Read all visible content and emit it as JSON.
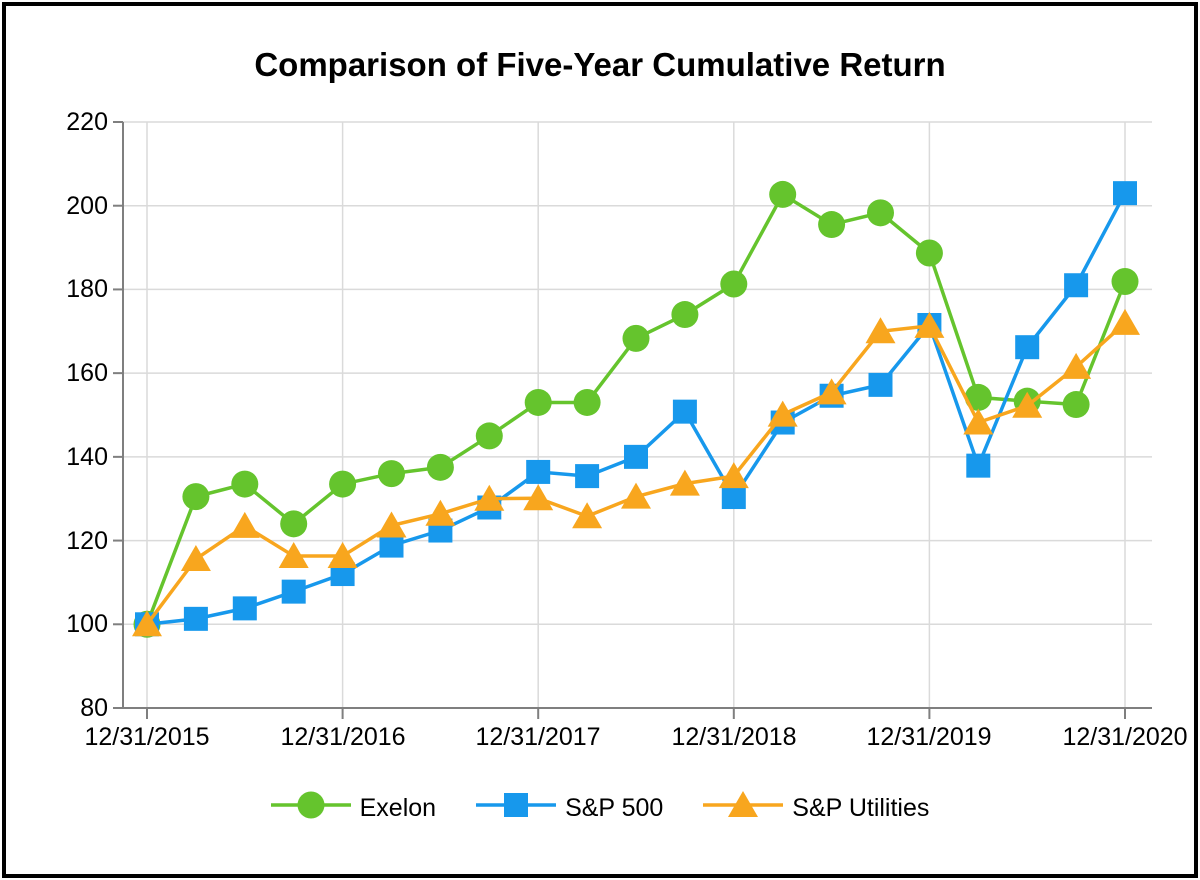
{
  "frame": {
    "border_color": "#000000",
    "background": "#ffffff"
  },
  "chart_data": {
    "type": "line",
    "title": "Comparison of Five-Year Cumulative Return",
    "grid": true,
    "grid_color": "#DADADA",
    "axis_color": "#7F7F7F",
    "legend_position": "bottom",
    "ylim": [
      80,
      220
    ],
    "y_ticks": [
      "220",
      "200",
      "180",
      "160",
      "140",
      "120",
      "100",
      "80"
    ],
    "x_tick_labels": [
      "12/31/2015",
      "12/31/2016",
      "12/31/2017",
      "12/31/2018",
      "12/31/2019",
      "12/31/2020"
    ],
    "x": [
      "12/31/2015",
      "3/31/2016",
      "6/30/2016",
      "9/30/2016",
      "12/31/2016",
      "3/31/2017",
      "6/30/2017",
      "9/30/2017",
      "12/31/2017",
      "3/31/2018",
      "6/30/2018",
      "9/30/2018",
      "12/31/2018",
      "3/31/2019",
      "6/30/2019",
      "9/30/2019",
      "12/31/2019",
      "3/31/2020",
      "6/30/2020",
      "9/30/2020",
      "12/31/2020"
    ],
    "series": [
      {
        "name": "Exelon",
        "color": "#65C42D",
        "marker": "circle",
        "values": [
          100,
          130.5,
          133.5,
          124.0,
          133.5,
          136.0,
          137.5,
          145.0,
          153.0,
          153.0,
          168.3,
          174.0,
          181.3,
          202.7,
          195.5,
          198.3,
          188.7,
          154.2,
          153.3,
          152.5,
          181.9
        ]
      },
      {
        "name": "S&P 500",
        "color": "#1798EC",
        "marker": "square",
        "values": [
          100,
          101.3,
          103.8,
          107.8,
          112.0,
          118.8,
          122.4,
          127.9,
          136.4,
          135.4,
          140.0,
          150.8,
          130.4,
          148.2,
          154.6,
          157.2,
          171.5,
          137.9,
          166.2,
          181.0,
          203.0
        ]
      },
      {
        "name": "S&P Utilities",
        "color": "#F8A61E",
        "marker": "triangle",
        "values": [
          100,
          115.6,
          123.5,
          116.3,
          116.3,
          123.6,
          126.4,
          130.0,
          130.1,
          125.8,
          130.5,
          133.6,
          135.4,
          150.1,
          155.4,
          170.0,
          171.3,
          148.2,
          152.2,
          161.5,
          172.0
        ]
      }
    ]
  }
}
